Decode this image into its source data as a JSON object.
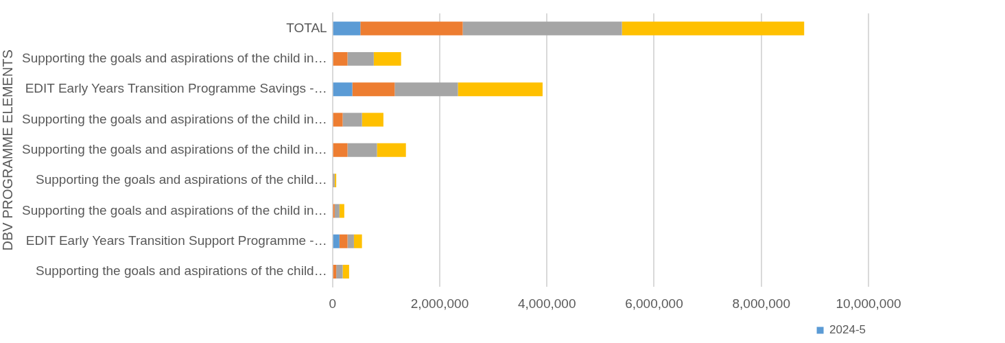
{
  "chart_data": {
    "type": "bar",
    "orientation": "horizontal",
    "stacked": true,
    "ylabel": "DBV PROGRAMME ELEMENTS",
    "categories": [
      "TOTAL",
      "Supporting the goals and aspirations of the child in…",
      "EDIT Early Years Transition Programme Savings -…",
      "Supporting the goals and aspirations of the child in…",
      "Supporting the goals and aspirations of the child in…",
      "Supporting the goals and aspirations of the child…",
      "Supporting the goals and aspirations of the child in…",
      "EDIT Early Years Transition Support Programme -…",
      "Supporting the goals and aspirations of the child…"
    ],
    "series": [
      {
        "name": "2024-5",
        "color": "#5b9bd5",
        "values": [
          520000,
          0,
          370000,
          0,
          0,
          0,
          0,
          130000,
          0
        ]
      },
      {
        "color": "#ed7d31",
        "values": [
          1910000,
          280000,
          790000,
          190000,
          280000,
          10000,
          40000,
          150000,
          70000
        ]
      },
      {
        "color": "#a5a5a5",
        "values": [
          2970000,
          490000,
          1180000,
          360000,
          550000,
          30000,
          90000,
          120000,
          120000
        ]
      },
      {
        "color": "#ffc000",
        "values": [
          3400000,
          510000,
          1580000,
          400000,
          540000,
          30000,
          90000,
          150000,
          120000
        ]
      }
    ],
    "xlim": [
      0,
      10000000
    ],
    "xticks": [
      0,
      {
        "value": 2000000,
        "label": "2,000,000"
      },
      {
        "value": 4000000,
        "label": "4,000,000"
      },
      {
        "value": 6000000,
        "label": "6,000,000"
      },
      {
        "value": 8000000,
        "label": "8,000,000"
      },
      {
        "value": 10000000,
        "label": "10,000,000"
      }
    ],
    "grid": "x",
    "legend": "bottom right"
  }
}
